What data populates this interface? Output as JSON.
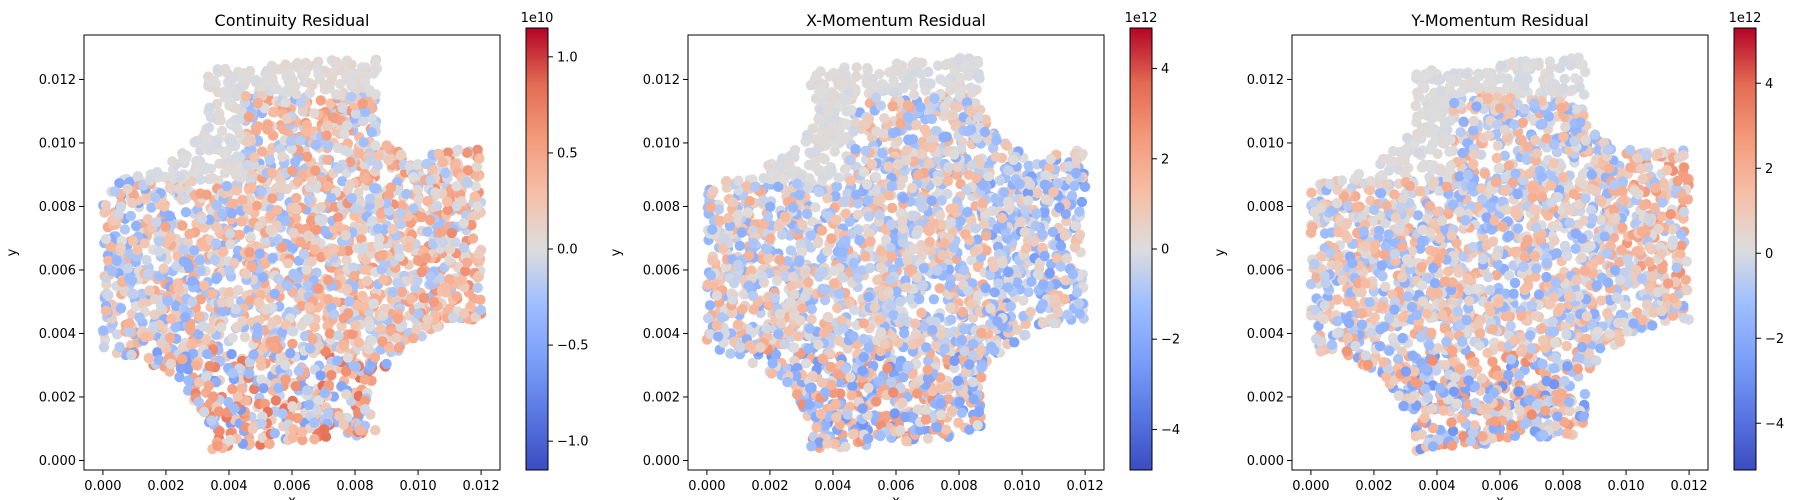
{
  "chart_data": [
    {
      "type": "scatter",
      "title": "Continuity Residual",
      "xlabel": "x",
      "ylabel": "y",
      "xlim": [
        -0.0006,
        0.0126
      ],
      "ylim": [
        -0.0003,
        0.0134
      ],
      "xticks": [
        "0.000",
        "0.002",
        "0.004",
        "0.006",
        "0.008",
        "0.010",
        "0.012"
      ],
      "yticks": [
        "0.000",
        "0.002",
        "0.004",
        "0.006",
        "0.008",
        "0.010",
        "0.012"
      ],
      "colormap": "coolwarm",
      "colorbar": {
        "exponent_label": "1e10",
        "range": [
          -1.15,
          1.15
        ],
        "ticks": [
          -1.0,
          -0.5,
          0.0,
          0.5,
          1.0
        ],
        "tick_labels": [
          "−1.0",
          "−0.5",
          "0.0",
          "0.5",
          "1.0"
        ]
      },
      "domain": {
        "description": "plate with quarter-circle cutouts at the corners",
        "x_range": [
          0.0,
          0.012
        ],
        "y_range": [
          0.0003,
          0.0129
        ]
      }
    },
    {
      "type": "scatter",
      "title": "X-Momentum Residual",
      "xlabel": "x",
      "ylabel": "y",
      "xlim": [
        -0.0006,
        0.0126
      ],
      "ylim": [
        -0.0003,
        0.0134
      ],
      "xticks": [
        "0.000",
        "0.002",
        "0.004",
        "0.006",
        "0.008",
        "0.010",
        "0.012"
      ],
      "yticks": [
        "0.000",
        "0.002",
        "0.004",
        "0.006",
        "0.008",
        "0.010",
        "0.012"
      ],
      "colormap": "coolwarm",
      "colorbar": {
        "exponent_label": "1e12",
        "range": [
          -4.9,
          4.9
        ],
        "ticks": [
          -4,
          -2,
          0,
          2,
          4
        ],
        "tick_labels": [
          "−4",
          "−2",
          "0",
          "2",
          "4"
        ]
      },
      "domain": {
        "description": "plate with quarter-circle cutouts at the corners",
        "x_range": [
          0.0,
          0.012
        ],
        "y_range": [
          0.0003,
          0.0129
        ]
      }
    },
    {
      "type": "scatter",
      "title": "Y-Momentum Residual",
      "xlabel": "x",
      "ylabel": "y",
      "xlim": [
        -0.0006,
        0.0126
      ],
      "ylim": [
        -0.0003,
        0.0134
      ],
      "xticks": [
        "0.000",
        "0.002",
        "0.004",
        "0.006",
        "0.008",
        "0.010",
        "0.012"
      ],
      "yticks": [
        "0.000",
        "0.002",
        "0.004",
        "0.006",
        "0.008",
        "0.010",
        "0.012"
      ],
      "colormap": "coolwarm",
      "colorbar": {
        "exponent_label": "1e12",
        "range": [
          -5.1,
          5.3
        ],
        "ticks": [
          -4,
          -2,
          0,
          2,
          4
        ],
        "tick_labels": [
          "−4",
          "−2",
          "0",
          "2",
          "4"
        ]
      },
      "domain": {
        "description": "plate with quarter-circle cutouts at the corners",
        "x_range": [
          0.0,
          0.012
        ],
        "y_range": [
          0.0003,
          0.0129
        ]
      }
    }
  ]
}
